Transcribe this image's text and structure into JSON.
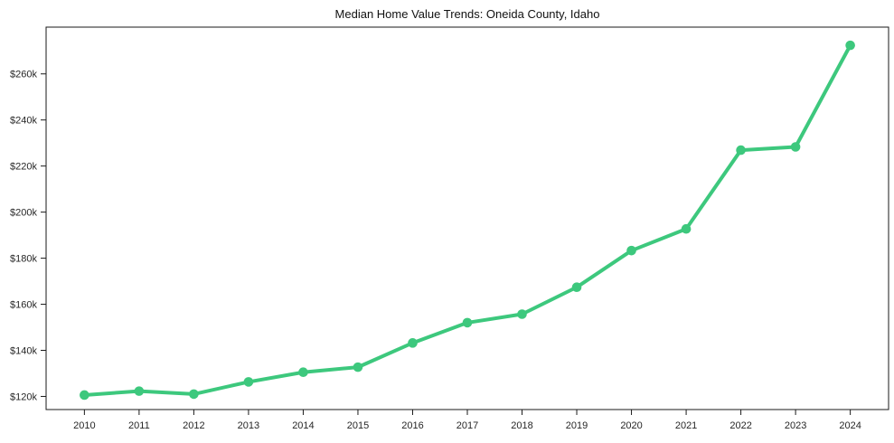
{
  "chart_data": {
    "type": "line",
    "title": "Median Home Value Trends: Oneida County, Idaho",
    "xlabel": "",
    "ylabel": "",
    "categories": [
      "2010",
      "2011",
      "2012",
      "2013",
      "2014",
      "2015",
      "2016",
      "2017",
      "2018",
      "2019",
      "2020",
      "2021",
      "2022",
      "2023",
      "2024"
    ],
    "values": [
      120600,
      122300,
      121000,
      126300,
      130500,
      132700,
      143200,
      152000,
      155700,
      167400,
      183300,
      192700,
      226900,
      228300,
      272400
    ],
    "ytick_values": [
      120000,
      140000,
      160000,
      180000,
      200000,
      220000,
      240000,
      260000
    ],
    "ytick_labels": [
      "$120k",
      "$140k",
      "$160k",
      "$180k",
      "$200k",
      "$220k",
      "$240k",
      "$260k"
    ],
    "ylim": [
      114300,
      280300
    ],
    "xlim": [
      2009.3,
      2024.7
    ],
    "grid": false,
    "legend": false,
    "marker": "circle",
    "line_color": "#3dc87d",
    "axis_color": "#1a1a1a",
    "tick_label_color": "#262626",
    "title_color": "#111111",
    "background_color": "#ffffff"
  }
}
